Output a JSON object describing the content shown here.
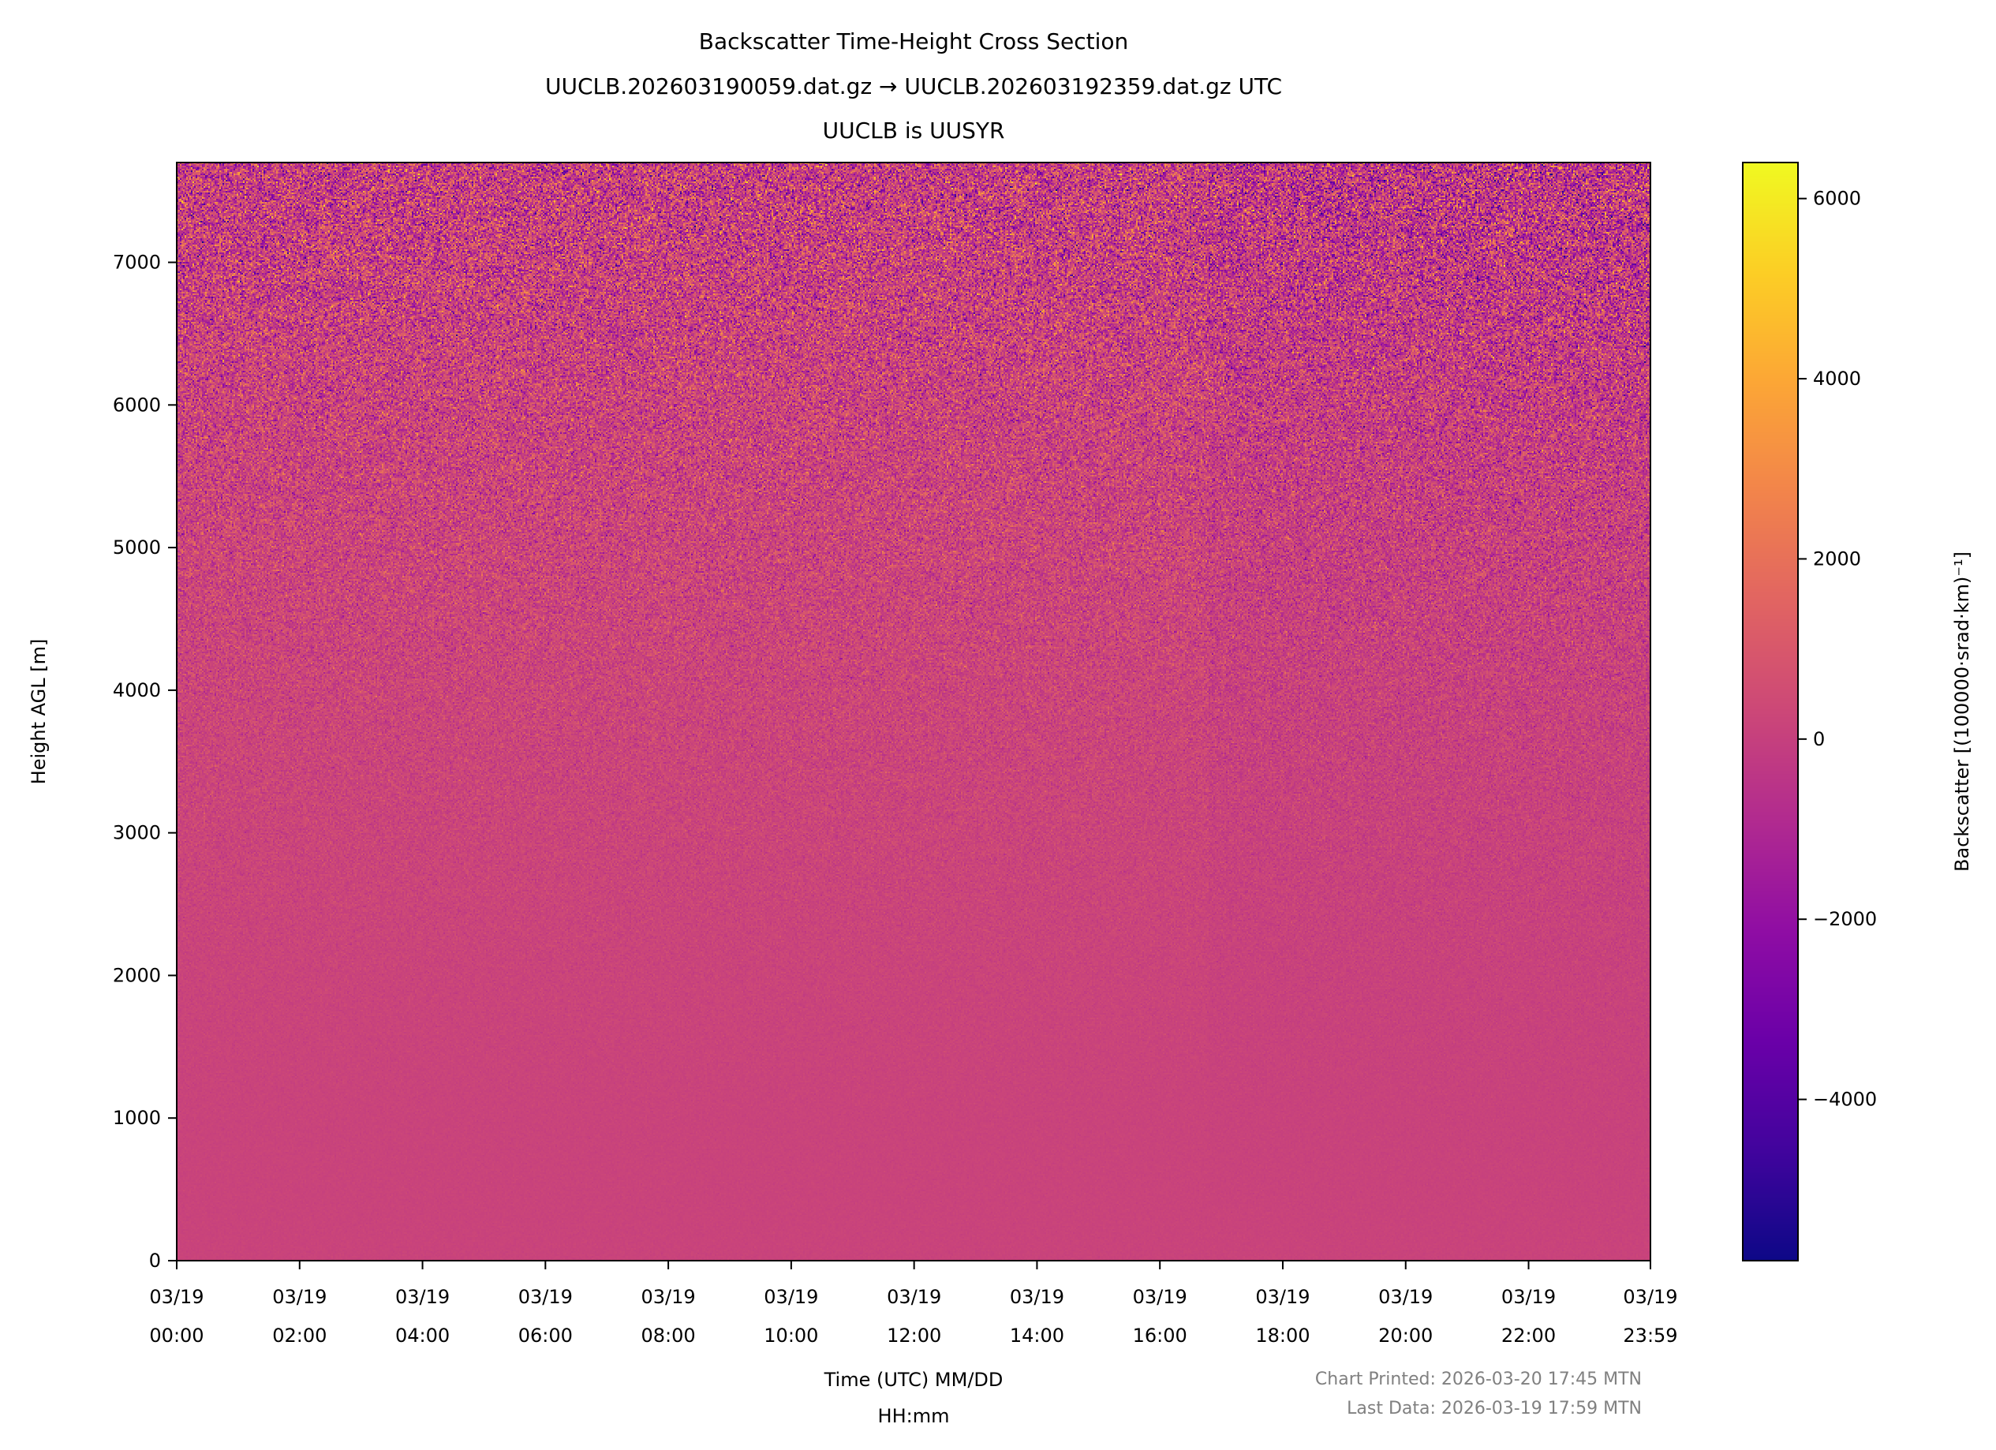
{
  "chart_data": {
    "type": "heatmap",
    "title": "Backscatter Time-Height Cross Section",
    "subtitle_lines": [
      "UUCLB.202603190059.dat.gz → UUCLB.202603192359.dat.gz UTC",
      "UUCLB is UUSYR"
    ],
    "xlabel_lines": [
      "Time (UTC) MM/DD",
      "HH:mm"
    ],
    "ylabel": "Height AGL [m]",
    "colorbar_label": "Backscatter [(100000·srad·km)⁻¹]",
    "colormap": "plasma",
    "clim": [
      -5790,
      6400
    ],
    "ylim": [
      0,
      7700
    ],
    "xlim": [
      "03/19 00:00",
      "03/19 23:59"
    ],
    "x_ticks": [
      {
        "date": "03/19",
        "time": "00:00"
      },
      {
        "date": "03/19",
        "time": "02:00"
      },
      {
        "date": "03/19",
        "time": "04:00"
      },
      {
        "date": "03/19",
        "time": "06:00"
      },
      {
        "date": "03/19",
        "time": "08:00"
      },
      {
        "date": "03/19",
        "time": "10:00"
      },
      {
        "date": "03/19",
        "time": "12:00"
      },
      {
        "date": "03/19",
        "time": "14:00"
      },
      {
        "date": "03/19",
        "time": "16:00"
      },
      {
        "date": "03/19",
        "time": "18:00"
      },
      {
        "date": "03/19",
        "time": "20:00"
      },
      {
        "date": "03/19",
        "time": "22:00"
      },
      {
        "date": "03/19",
        "time": "23:59"
      }
    ],
    "y_ticks": [
      "0",
      "1000",
      "2000",
      "3000",
      "4000",
      "5000",
      "6000",
      "7000"
    ],
    "colorbar_ticks": [
      "−4000",
      "−2000",
      "0",
      "2000",
      "4000",
      "6000"
    ],
    "height_profile_m": [
      0,
      1000,
      2000,
      3000,
      4000,
      5000,
      6000,
      7000,
      7700
    ],
    "approx_mean_backscatter": [
      150,
      150,
      180,
      220,
      250,
      250,
      200,
      100,
      0
    ],
    "approx_spread_backscatter": [
      60,
      80,
      150,
      300,
      500,
      800,
      1100,
      1500,
      1700
    ],
    "grid": false,
    "notes": [
      "Chart Printed: 2026-03-20 17:45 MTN",
      "Last Data: 2026-03-19 17:59 MTN"
    ],
    "note_color": "#808080"
  }
}
